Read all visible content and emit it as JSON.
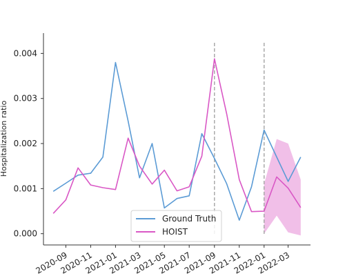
{
  "chart_data": {
    "type": "line",
    "title": "",
    "xlabel": "",
    "ylabel": "Hospitalization ratio",
    "x": [
      "2020-08",
      "2020-09",
      "2020-10",
      "2020-11",
      "2020-12",
      "2021-01",
      "2021-02",
      "2021-03",
      "2021-04",
      "2021-05",
      "2021-06",
      "2021-07",
      "2021-08",
      "2021-09",
      "2021-10",
      "2021-11",
      "2021-12",
      "2022-01",
      "2022-02",
      "2022-03",
      "2022-04"
    ],
    "xlim": [
      "2020-07-08",
      "2022-04-25"
    ],
    "ylim": [
      -0.00025,
      0.00445
    ],
    "xticks": [
      {
        "date": "2020-09",
        "label": "2020-09"
      },
      {
        "date": "2020-11",
        "label": "2020-11"
      },
      {
        "date": "2021-01",
        "label": "2021-01"
      },
      {
        "date": "2021-03",
        "label": "2021-03"
      },
      {
        "date": "2021-05",
        "label": "2021-05"
      },
      {
        "date": "2021-07",
        "label": "2021-07"
      },
      {
        "date": "2021-09",
        "label": "2021-09"
      },
      {
        "date": "2021-11",
        "label": "2021-11"
      },
      {
        "date": "2022-01",
        "label": "2022-01"
      },
      {
        "date": "2022-03",
        "label": "2022-03"
      }
    ],
    "yticks": [
      {
        "value": 0.0,
        "label": "0.000"
      },
      {
        "value": 0.001,
        "label": "0.001"
      },
      {
        "value": 0.002,
        "label": "0.002"
      },
      {
        "value": 0.003,
        "label": "0.003"
      },
      {
        "value": 0.004,
        "label": "0.004"
      }
    ],
    "series": [
      {
        "name": "Ground Truth",
        "color": "#5b9bd5",
        "values": [
          0.00094,
          0.00112,
          0.0013,
          0.00134,
          0.0017,
          0.0038,
          0.0025,
          0.00124,
          0.002,
          0.00057,
          0.00078,
          0.00084,
          0.00222,
          0.00167,
          0.00111,
          0.0003,
          0.00104,
          0.0023,
          0.0017,
          0.00116,
          0.0017
        ]
      },
      {
        "name": "HOIST",
        "color": "#d957c5",
        "values": [
          0.00045,
          0.00075,
          0.00146,
          0.00108,
          0.00102,
          0.00098,
          0.00212,
          0.0015,
          0.0011,
          0.00141,
          0.00095,
          0.00104,
          0.00172,
          0.00388,
          0.00266,
          0.0012,
          0.00049,
          0.0005,
          0.00126,
          0.00101,
          0.00058
        ]
      }
    ],
    "band": {
      "series": "HOIST",
      "color": "#f0b8e6",
      "x": [
        "2022-01",
        "2022-02",
        "2022-03",
        "2022-04"
      ],
      "lower": [
        0.0,
        0.0004,
        3e-05,
        -4e-05
      ],
      "upper": [
        0.0011,
        0.0021,
        0.002,
        0.0012
      ]
    },
    "vlines": [
      {
        "date": "2021-09",
        "color": "#aaaaaa",
        "style": "dashed"
      },
      {
        "date": "2022-01",
        "color": "#aaaaaa",
        "style": "dashed"
      }
    ],
    "legend": {
      "placement": "bottom-center",
      "entries": [
        "Ground Truth",
        "HOIST"
      ]
    },
    "grid": false
  }
}
